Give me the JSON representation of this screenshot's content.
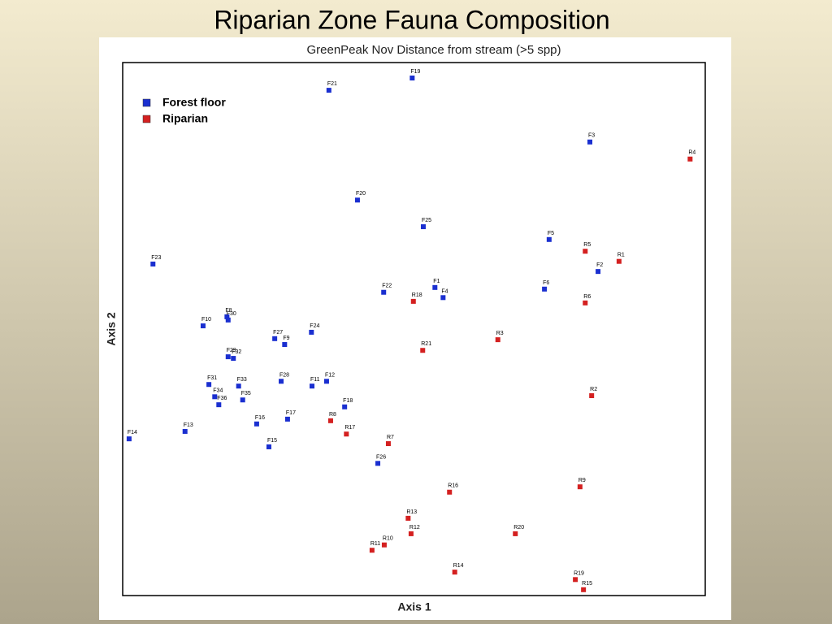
{
  "chart_data": {
    "type": "scatter",
    "title": "Riparian Zone Fauna Composition",
    "subtitle": "GreenPeak Nov Distance from stream (>5 spp)",
    "x_label": "Axis 1",
    "y_label": "Axis 2",
    "xlim": [
      0,
      100
    ],
    "ylim": [
      0,
      100
    ],
    "legend": "upper left",
    "series": [
      {
        "name": "Forest floor",
        "color": "#1a2fd0",
        "labels": [
          "F19",
          "F21",
          "F3",
          "F20",
          "F25",
          "F5",
          "F23",
          "F2",
          "F1",
          "F22",
          "F4",
          "F6",
          "F8",
          "F30",
          "F10",
          "F24",
          "F27",
          "F9",
          "F29",
          "F32",
          "F31",
          "F28",
          "F33",
          "F11",
          "F12",
          "F34",
          "F35",
          "F36",
          "F18",
          "F17",
          "F16",
          "F13",
          "F14",
          "F15",
          "F26"
        ],
        "x": [
          49.7,
          35.4,
          80.2,
          40.3,
          51.6,
          73.2,
          5.2,
          81.6,
          53.6,
          44.8,
          55.0,
          72.4,
          17.9,
          18.1,
          13.8,
          32.4,
          26.1,
          27.8,
          18.1,
          19.0,
          14.8,
          27.2,
          19.9,
          32.5,
          35.0,
          15.8,
          20.6,
          16.5,
          38.1,
          28.3,
          23.0,
          10.7,
          1.1,
          25.1,
          43.8
        ],
        "y": [
          97.1,
          94.8,
          85.1,
          74.2,
          69.2,
          66.8,
          62.2,
          60.8,
          57.8,
          56.9,
          55.9,
          57.5,
          52.3,
          51.7,
          50.6,
          49.4,
          48.2,
          47.1,
          44.8,
          44.5,
          39.6,
          40.2,
          39.3,
          39.3,
          40.2,
          37.3,
          36.7,
          35.8,
          35.4,
          33.1,
          32.2,
          30.8,
          29.4,
          27.9,
          24.8
        ]
      },
      {
        "name": "Riparian",
        "color": "#d42020",
        "labels": [
          "R4",
          "R5",
          "R1",
          "R6",
          "R18",
          "R3",
          "R21",
          "R2",
          "R8",
          "R17",
          "R7",
          "R9",
          "R16",
          "R13",
          "R12",
          "R20",
          "R10",
          "R11",
          "R14",
          "R19",
          "R15"
        ],
        "x": [
          97.4,
          79.4,
          85.2,
          79.4,
          49.9,
          64.4,
          51.5,
          80.5,
          35.7,
          38.4,
          45.6,
          78.5,
          56.1,
          49.0,
          49.5,
          67.4,
          44.9,
          42.8,
          57.0,
          77.7,
          79.1
        ],
        "y": [
          81.9,
          64.6,
          62.7,
          54.9,
          55.2,
          48.0,
          46.0,
          37.5,
          32.8,
          30.3,
          28.5,
          20.4,
          19.4,
          14.5,
          11.6,
          11.6,
          9.5,
          8.5,
          4.4,
          3.0,
          1.1
        ]
      }
    ]
  }
}
